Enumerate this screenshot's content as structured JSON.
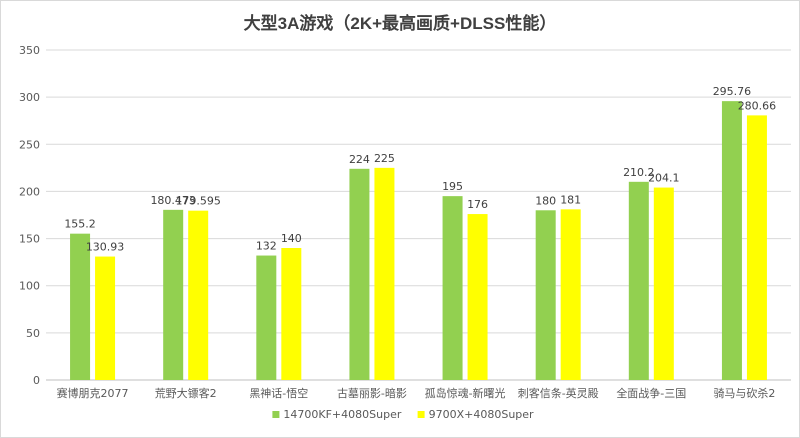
{
  "chart_data": {
    "type": "bar",
    "title": "大型3A游戏（2K+最高画质+DLSS性能）",
    "xlabel": "",
    "ylabel": "",
    "ylim": [
      0,
      350
    ],
    "yticks": [
      0,
      50,
      100,
      150,
      200,
      250,
      300,
      350
    ],
    "grid": true,
    "legend_position": "bottom",
    "categories": [
      "赛博朋克2077",
      "荒野大镖客2",
      "黑神话-悟空",
      "古墓丽影-暗影",
      "孤岛惊魂-新曙光",
      "刺客信条-英灵殿",
      "全面战争-三国",
      "骑马与砍杀2"
    ],
    "series": [
      {
        "name": "14700KF+4080Super",
        "color": "#92d050",
        "values": [
          155.2,
          180.473,
          132,
          224,
          195,
          180,
          210.2,
          295.76
        ],
        "labels": [
          "155.2",
          "180.473",
          "132",
          "224",
          "195",
          "180",
          "210.2",
          "295.76"
        ]
      },
      {
        "name": "9700X+4080Super",
        "color": "#ffff00",
        "values": [
          130.93,
          179.595,
          140,
          225,
          176,
          181,
          204.1,
          280.66
        ],
        "labels": [
          "130.93",
          "179.595",
          "140",
          "225",
          "176",
          "181",
          "204.1",
          "280.66"
        ]
      }
    ]
  }
}
